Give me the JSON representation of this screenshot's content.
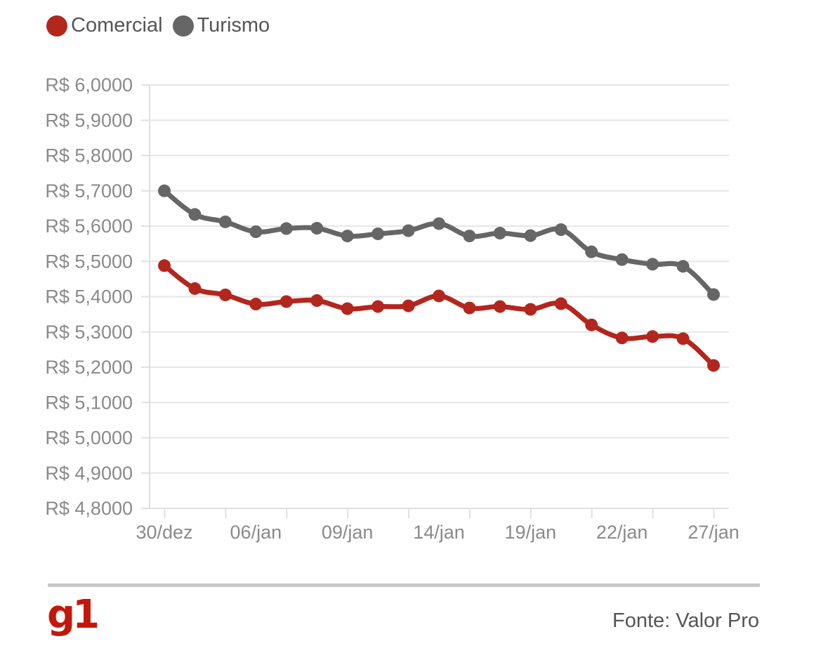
{
  "chart_data": {
    "type": "line",
    "x_labels": [
      "30/dez",
      "06/jan",
      "09/jan",
      "14/jan",
      "19/jan",
      "22/jan",
      "27/jan"
    ],
    "x_label_positions": [
      0,
      3,
      6,
      9,
      12,
      15,
      18
    ],
    "ylim": [
      4.8,
      6.0
    ],
    "y_step": 0.1,
    "y_tick_labels": [
      "R$ 4,8000",
      "R$ 4,9000",
      "R$ 5,0000",
      "R$ 5,1000",
      "R$ 5,2000",
      "R$ 5,3000",
      "R$ 5,4000",
      "R$ 5,5000",
      "R$ 5,6000",
      "R$ 5,7000",
      "R$ 5,8000",
      "R$ 5,9000",
      "R$ 6,0000"
    ],
    "grid": true,
    "legend_position": "top-left",
    "series": [
      {
        "name": "Comercial",
        "color": "#b3261e",
        "values": [
          5.488,
          5.423,
          5.405,
          5.379,
          5.386,
          5.389,
          5.366,
          5.372,
          5.374,
          5.402,
          5.368,
          5.372,
          5.364,
          5.38,
          5.32,
          5.283,
          5.287,
          5.281,
          5.205
        ]
      },
      {
        "name": "Turismo",
        "color": "#666666",
        "values": [
          5.7,
          5.633,
          5.612,
          5.584,
          5.593,
          5.594,
          5.572,
          5.578,
          5.587,
          5.607,
          5.572,
          5.58,
          5.573,
          5.59,
          5.527,
          5.505,
          5.492,
          5.486,
          5.406
        ]
      }
    ]
  },
  "footer": {
    "logo": "g1",
    "source": "Fonte: Valor Pro"
  }
}
